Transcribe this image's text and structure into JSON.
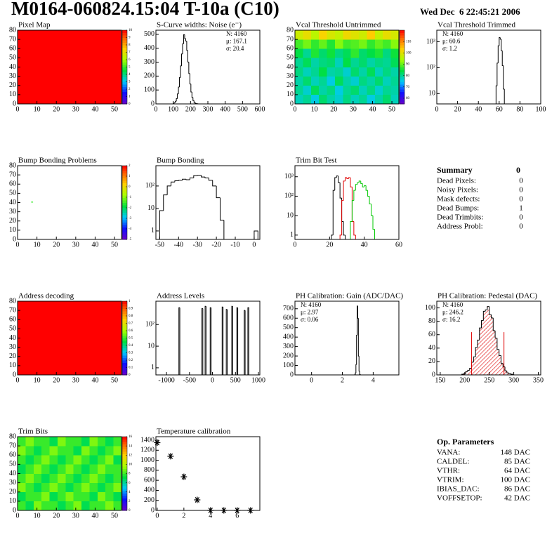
{
  "header": {
    "title": "M0164-060824.15:04 T-10a (C10)",
    "date": "Wed Dec  6 22:45:21 2006"
  },
  "summary": {
    "title": "Summary",
    "total": 0,
    "rows": [
      {
        "label": "Dead Pixels:",
        "value": 0
      },
      {
        "label": "Noisy Pixels:",
        "value": 0
      },
      {
        "label": "Mask defects:",
        "value": 0
      },
      {
        "label": "Dead Bumps:",
        "value": 1
      },
      {
        "label": "Dead Trimbits:",
        "value": 0
      },
      {
        "label": "Address Probl:",
        "value": 0
      }
    ]
  },
  "parameters": {
    "title": "Op. Parameters",
    "rows": [
      {
        "label": "VANA:",
        "value": "148 DAC"
      },
      {
        "label": "CALDEL:",
        "value": "85 DAC"
      },
      {
        "label": "VTHR:",
        "value": "64 DAC"
      },
      {
        "label": "VTRIM:",
        "value": "100 DAC"
      },
      {
        "label": "IBIAS_DAC:",
        "value": "86 DAC"
      },
      {
        "label": "VOFFSETOP:",
        "value": "42 DAC"
      }
    ]
  },
  "chart_data": [
    {
      "type": "heatmap",
      "title": "Pixel Map",
      "xlim": [
        0,
        53.6
      ],
      "xticks": [
        0,
        10,
        20,
        30,
        40,
        50
      ],
      "ylim": [
        0,
        80
      ],
      "yticks": [
        0,
        10,
        20,
        30,
        40,
        50,
        60,
        70,
        80
      ],
      "zlim": [
        0,
        10
      ],
      "zticks": [
        0,
        1,
        2,
        3,
        4,
        5,
        6,
        7,
        8,
        9,
        10
      ],
      "z": [
        [
          10
        ]
      ]
    },
    {
      "type": "histogram",
      "title": "S-Curve widths: Noise (e⁻)",
      "xlim": [
        0,
        600
      ],
      "xticks": [
        0,
        100,
        200,
        300,
        400,
        500,
        600
      ],
      "ylim": [
        0,
        530
      ],
      "yticks": [
        0,
        100,
        200,
        300,
        400,
        500
      ],
      "color": "#000000",
      "bins": [
        100,
        106,
        112,
        118,
        124,
        130,
        136,
        142,
        148,
        154,
        160,
        166,
        172,
        178,
        184,
        190,
        196,
        202,
        208,
        214,
        220,
        226,
        232,
        238,
        244,
        250
      ],
      "values": [
        4,
        9,
        19,
        38,
        72,
        121,
        190,
        273,
        359,
        432,
        498,
        470,
        452,
        385,
        301,
        218,
        143,
        86,
        47,
        24,
        11,
        5,
        2,
        1,
        0
      ],
      "stats": [
        "N: 4160",
        "μ: 167.1",
        "σ: 20.4"
      ],
      "stats_corner": "top-right"
    },
    {
      "type": "heatmap",
      "title": "Vcal Threshold Untrimmed",
      "xlim": [
        0,
        53.6
      ],
      "xticks": [
        0,
        10,
        20,
        30,
        40,
        50
      ],
      "ylim": [
        0,
        80
      ],
      "yticks": [
        0,
        10,
        20,
        30,
        40,
        50,
        60,
        70,
        80
      ],
      "zlim": [
        55,
        120
      ],
      "zticks": [
        60,
        70,
        80,
        90,
        100,
        110
      ],
      "z": [
        [
          78,
          80,
          76,
          82,
          79,
          77,
          81,
          78,
          80,
          76,
          79,
          82,
          78
        ],
        [
          80,
          77,
          83,
          79,
          81,
          76,
          80,
          82,
          78,
          81,
          77,
          80,
          79
        ],
        [
          79,
          82,
          78,
          80,
          76,
          83,
          79,
          77,
          81,
          79,
          82,
          78,
          80
        ],
        [
          81,
          78,
          80,
          84,
          79,
          80,
          77,
          82,
          79,
          83,
          78,
          81,
          79
        ],
        [
          80,
          83,
          79,
          81,
          82,
          78,
          84,
          80,
          82,
          79,
          81,
          80,
          83
        ],
        [
          84,
          80,
          86,
          82,
          85,
          81,
          83,
          87,
          82,
          84,
          86,
          81,
          85
        ],
        [
          88,
          91,
          87,
          90,
          86,
          92,
          88,
          89,
          91,
          87,
          90,
          88,
          92
        ],
        [
          98,
          101,
          96,
          103,
          99,
          97,
          102,
          100,
          98,
          104,
          97,
          101,
          99
        ]
      ]
    },
    {
      "type": "histogram",
      "title": "Vcal Threshold Trimmed",
      "xlim": [
        0,
        100
      ],
      "xticks": [
        0,
        20,
        40,
        60,
        80,
        100
      ],
      "logy": true,
      "ylim": [
        4,
        2800
      ],
      "yticks": [
        10,
        {
          "value": 100,
          "label": "10²"
        },
        {
          "value": 1000,
          "label": "10³"
        }
      ],
      "color": "#000000",
      "bins": [
        55,
        56,
        57,
        58,
        59,
        60,
        61,
        62,
        63,
        64,
        65,
        66
      ],
      "values": [
        0,
        3,
        20,
        150,
        700,
        1450,
        1250,
        450,
        120,
        15,
        2
      ],
      "stats": [
        "N: 4160",
        "μ: 60.6",
        "σ:  1.2"
      ],
      "stats_corner": "top-left"
    },
    {
      "type": "heatmap",
      "title": "Bump Bonding Problems",
      "xlim": [
        0,
        53.6
      ],
      "xticks": [
        0,
        10,
        20,
        30,
        40,
        50
      ],
      "ylim": [
        0,
        80
      ],
      "yticks": [
        0,
        10,
        20,
        30,
        40,
        50,
        60,
        70,
        80
      ],
      "zlim": [
        -5,
        2
      ],
      "zticks": [
        -5,
        -4,
        -3,
        -2,
        -1,
        0,
        1,
        2
      ],
      "x": [
        7
      ],
      "y": [
        40
      ],
      "values": [
        -1.5
      ]
    },
    {
      "type": "histogram",
      "title": "Bump Bonding",
      "xlim": [
        -52,
        3
      ],
      "xticks": [
        -50,
        -40,
        -30,
        -20,
        -10,
        0
      ],
      "logy": true,
      "ylim": [
        0.42,
        800
      ],
      "yticks": [
        1,
        10,
        {
          "value": 100,
          "label": "10²"
        }
      ],
      "color": "#000000",
      "bins": [
        -50,
        -48,
        -46,
        -44,
        -42,
        -40,
        -38,
        -36,
        -34,
        -32,
        -30,
        -28,
        -26,
        -24,
        -22,
        -20,
        -18,
        -16,
        -14,
        -12,
        -10,
        -8,
        -6,
        -4,
        -2,
        0,
        2
      ],
      "values": [
        8,
        40,
        100,
        150,
        170,
        180,
        200,
        190,
        230,
        290,
        300,
        250,
        230,
        180,
        100,
        30,
        3,
        0,
        0,
        0,
        0,
        0,
        0,
        0,
        0,
        1
      ]
    },
    {
      "type": "histogram",
      "title": "Trim Bit Test",
      "xlim": [
        0,
        60
      ],
      "xticks": [
        0,
        20,
        40,
        60
      ],
      "logy": true,
      "ylim": [
        0.6,
        3700
      ],
      "yticks": [
        1,
        10,
        {
          "value": 100,
          "label": "10²"
        },
        {
          "value": 1000,
          "label": "10³"
        }
      ],
      "bins": [
        20,
        21,
        22,
        23,
        24,
        25,
        26,
        27,
        28,
        29,
        30,
        31,
        32,
        33,
        34,
        35,
        36,
        37,
        38,
        39,
        40,
        41,
        42,
        43,
        44,
        45,
        46,
        47
      ],
      "series": [
        {
          "color": "#000000",
          "values": [
            0,
            1,
            200,
            900,
            1100,
            500,
            80,
            5,
            1,
            0,
            0,
            0,
            0,
            0,
            0,
            0,
            0,
            0,
            0,
            0,
            0,
            0,
            0,
            0,
            0,
            0,
            0
          ]
        },
        {
          "color": "#e00000",
          "values": [
            0,
            0,
            0,
            0,
            0,
            0,
            1,
            60,
            600,
            900,
            800,
            900,
            300,
            5,
            1,
            0,
            0,
            0,
            0,
            0,
            0,
            0,
            0,
            0,
            0,
            0,
            0
          ]
        },
        {
          "color": "#00c800",
          "values": [
            0,
            0,
            0,
            0,
            0,
            0,
            0,
            0,
            0,
            0,
            0,
            0,
            5,
            60,
            200,
            400,
            500,
            600,
            450,
            300,
            350,
            200,
            100,
            40,
            10,
            2,
            0
          ]
        }
      ]
    },
    {
      "type": "heatmap",
      "title": "Address decoding",
      "xlim": [
        0,
        53.6
      ],
      "xticks": [
        0,
        10,
        20,
        30,
        40,
        50
      ],
      "ylim": [
        0,
        80
      ],
      "yticks": [
        0,
        10,
        20,
        30,
        40,
        50,
        60,
        70,
        80
      ],
      "zlim": [
        0,
        1
      ],
      "zticks": [
        0,
        0.1,
        0.2,
        0.3,
        0.4,
        0.5,
        0.6,
        0.7,
        0.8,
        0.9,
        1
      ],
      "z": [
        [
          1
        ]
      ]
    },
    {
      "type": "histogram",
      "title": "Address Levels",
      "xlim": [
        -1230,
        1030
      ],
      "xticks": [
        -1000,
        -500,
        0,
        500,
        1000
      ],
      "logy": true,
      "ylim": [
        0.47,
        1200
      ],
      "yticks": [
        1,
        10,
        {
          "value": 100,
          "label": "10²"
        }
      ],
      "color": "#000000",
      "bins": [
        -730,
        -710,
        -230,
        -210,
        -160,
        -140,
        -50,
        -30,
        210,
        230,
        300,
        320,
        420,
        440,
        530,
        550,
        690,
        710,
        770,
        790
      ],
      "values": [
        600,
        0,
        550,
        0,
        700,
        0,
        600,
        0,
        650,
        0,
        500,
        0,
        700,
        0,
        600,
        0,
        450,
        0,
        600
      ]
    },
    {
      "type": "histogram",
      "title": "PH Calibration: Gain (ADC/DAC)",
      "xlim": [
        -1.08,
        5.67
      ],
      "xticks": [
        0,
        2,
        4
      ],
      "ylim": [
        0,
        780
      ],
      "yticks": [
        0,
        100,
        200,
        300,
        400,
        500,
        600,
        700
      ],
      "color": "#000000",
      "bins": [
        2.8,
        2.84,
        2.88,
        2.92,
        2.96,
        3.0,
        3.04,
        3.08,
        3.12,
        3.16
      ],
      "values": [
        2,
        20,
        110,
        420,
        730,
        600,
        200,
        40,
        5
      ],
      "stats": [
        "N: 4160",
        "μ: 2.97",
        "σ: 0.06"
      ],
      "stats_corner": "top-left"
    },
    {
      "type": "histogram",
      "title": "PH Calibration: Pedestal (DAC)",
      "xlim": [
        143,
        355
      ],
      "xticks": [
        150,
        200,
        250,
        300,
        350
      ],
      "ylim": [
        0,
        110
      ],
      "yticks": [
        0,
        20,
        40,
        60,
        80,
        100
      ],
      "color": "#000000",
      "hatch": true,
      "fill_color": "#e00000",
      "bins": [
        190,
        194,
        198,
        202,
        206,
        210,
        214,
        218,
        222,
        226,
        230,
        234,
        238,
        242,
        246,
        250,
        254,
        258,
        262,
        266,
        270,
        274,
        278,
        282,
        286,
        290,
        294,
        298,
        302
      ],
      "values": [
        0,
        1,
        2,
        5,
        7,
        10,
        19,
        27,
        41,
        52,
        70,
        81,
        95,
        97,
        102,
        90,
        85,
        66,
        55,
        38,
        29,
        17,
        12,
        6,
        3,
        2,
        1,
        0
      ],
      "vlines": [
        214,
        280
      ],
      "vline_color": "#e00000",
      "stats": [
        "N: 4160",
        "μ: 246.2",
        "σ: 16.2"
      ],
      "stats_colors": [
        "#000000",
        "#e00000",
        "#e00000"
      ],
      "stats_corner": "top-left"
    },
    {
      "type": "heatmap",
      "title": "Trim Bits",
      "xlim": [
        0,
        53.6
      ],
      "xticks": [
        0,
        10,
        20,
        30,
        40,
        50
      ],
      "ylim": [
        0,
        80
      ],
      "yticks": [
        0,
        10,
        20,
        30,
        40,
        50,
        60,
        70,
        80
      ],
      "zlim": [
        0,
        16
      ],
      "zticks": [
        0,
        2,
        4,
        6,
        8,
        10,
        12,
        14,
        16
      ],
      "z": [
        [
          8,
          7,
          9,
          8,
          8,
          7,
          8,
          9,
          7,
          8,
          8,
          9,
          8
        ],
        [
          7,
          8,
          8,
          9,
          7,
          8,
          9,
          8,
          8,
          7,
          9,
          8,
          7
        ],
        [
          9,
          8,
          7,
          8,
          9,
          8,
          7,
          8,
          9,
          8,
          7,
          8,
          9
        ],
        [
          8,
          9,
          8,
          7,
          8,
          9,
          8,
          7,
          8,
          9,
          8,
          7,
          8
        ],
        [
          7,
          8,
          9,
          8,
          7,
          8,
          9,
          8,
          7,
          8,
          9,
          8,
          8
        ],
        [
          8,
          7,
          8,
          9,
          8,
          7,
          8,
          9,
          8,
          7,
          8,
          9,
          7
        ],
        [
          9,
          8,
          7,
          8,
          9,
          8,
          8,
          7,
          9,
          8,
          7,
          8,
          9
        ],
        [
          8,
          9,
          8,
          8,
          7,
          9,
          8,
          8,
          7,
          9,
          8,
          7,
          8
        ]
      ]
    },
    {
      "type": "scatter",
      "title": "Temperature calibration",
      "xlim": [
        -0.1,
        7.7
      ],
      "xticks": [
        0,
        2,
        4,
        6
      ],
      "ylim": [
        0,
        1470
      ],
      "yticks": [
        0,
        200,
        400,
        600,
        800,
        1000,
        1200,
        1400
      ],
      "color": "#000000",
      "x": [
        0,
        1,
        2,
        3,
        4,
        5,
        6,
        7
      ],
      "values": [
        1350,
        1080,
        670,
        210,
        0,
        0,
        0,
        0
      ]
    }
  ]
}
